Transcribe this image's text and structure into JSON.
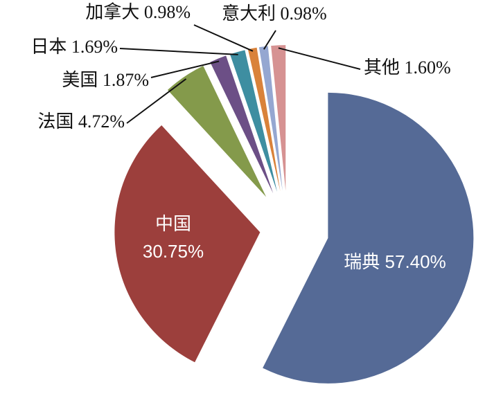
{
  "chart_data": {
    "type": "pie",
    "categories": [
      "瑞典",
      "中国",
      "法国",
      "美国",
      "日本",
      "加拿大",
      "意大利",
      "其他"
    ],
    "values": [
      57.4,
      30.75,
      4.72,
      1.87,
      1.69,
      0.98,
      0.98,
      1.6
    ],
    "value_labels": [
      "57.40%",
      "30.75%",
      "4.72%",
      "1.87%",
      "1.69%",
      "0.98%",
      "0.98%",
      "1.60%"
    ],
    "colors": [
      "#556a96",
      "#9c3f3c",
      "#849a4b",
      "#6c4f86",
      "#3e8ea1",
      "#d9823a",
      "#95a7d1",
      "#d69292"
    ]
  }
}
